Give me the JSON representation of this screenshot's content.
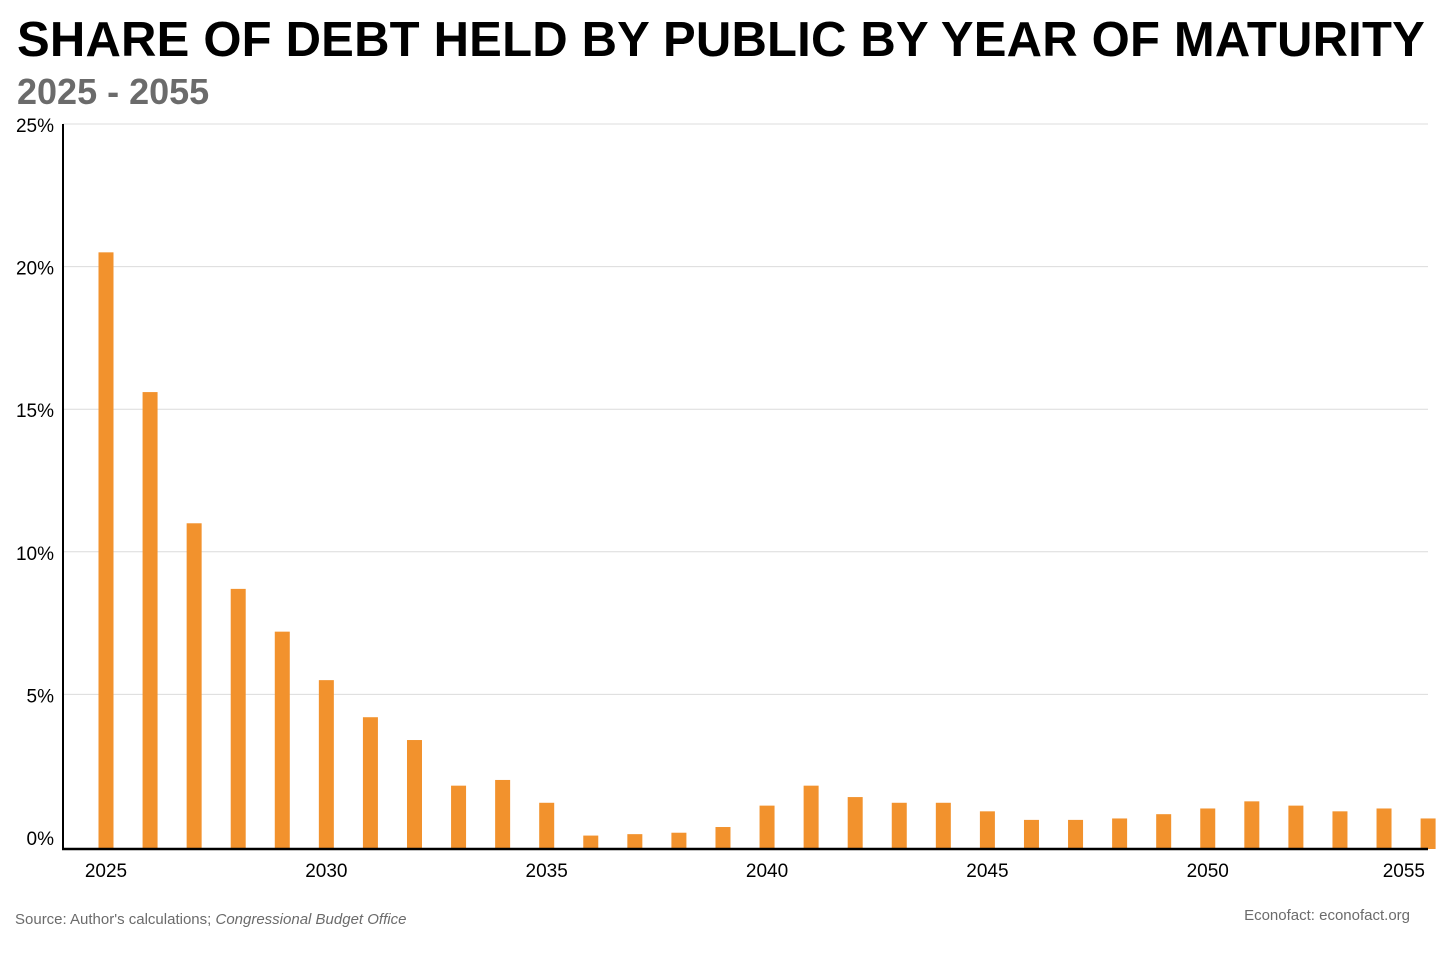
{
  "chart_data": {
    "type": "bar",
    "title": "SHARE OF DEBT HELD BY PUBLIC BY YEAR OF MATURITY",
    "subtitle": "2025 - 2055",
    "xlabel": "",
    "ylabel": "",
    "categories": [
      2025,
      2026,
      2027,
      2028,
      2029,
      2030,
      2031,
      2032,
      2033,
      2034,
      2035,
      2036,
      2037,
      2038,
      2039,
      2040,
      2041,
      2042,
      2043,
      2044,
      2045,
      2046,
      2047,
      2048,
      2049,
      2050,
      2051,
      2052,
      2053,
      2054,
      2055
    ],
    "values": [
      20.5,
      15.6,
      11.0,
      8.7,
      7.2,
      5.5,
      4.2,
      3.4,
      1.8,
      2.0,
      1.2,
      0.05,
      0.1,
      0.15,
      0.35,
      1.1,
      1.8,
      1.4,
      1.2,
      1.2,
      0.9,
      0.6,
      0.6,
      0.65,
      0.8,
      1.0,
      1.25,
      1.1,
      0.9,
      1.0,
      0.65
    ],
    "ylim": [
      0,
      25
    ],
    "y_ticks": [
      0,
      5,
      10,
      15,
      20,
      25
    ],
    "y_tick_labels": [
      "0%",
      "5%",
      "10%",
      "15%",
      "20%",
      "25%"
    ],
    "x_ticks": [
      2025,
      2030,
      2035,
      2040,
      2045,
      2050,
      2055
    ],
    "x_tick_labels": [
      "2025",
      "2030",
      "2035",
      "2040",
      "2045",
      "2050",
      "2055"
    ],
    "grid": true,
    "legend": "none",
    "bar_color": "#f2922d"
  },
  "footer": {
    "source_prefix": "Source: Author's calculations; ",
    "source_italic": "Congressional Budget Office",
    "credit": "Econofact: econofact.org"
  }
}
